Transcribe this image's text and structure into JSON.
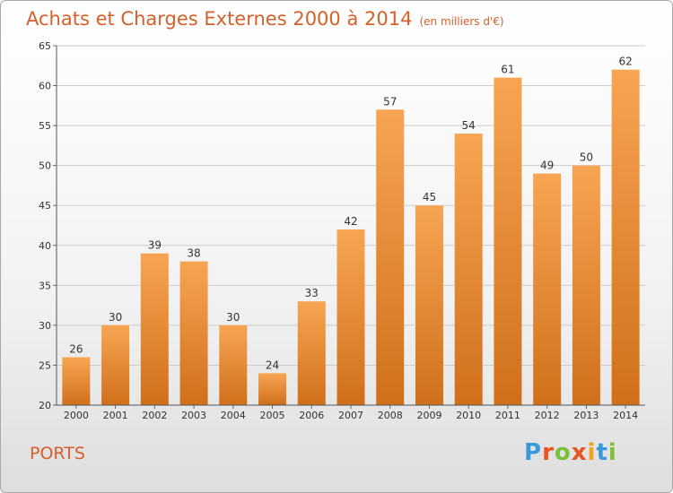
{
  "title": "Achats et Charges Externes 2000 à 2014",
  "unit": "(en milliers d'€)",
  "town": "PORTS",
  "logo": {
    "letters": [
      "P",
      "r",
      "o",
      "x",
      "i",
      "t",
      "i"
    ],
    "colors": [
      "#3a9ad9",
      "#e8531f",
      "#7cbf3a",
      "#e8531f",
      "#f2a31b",
      "#3a9ad9",
      "#7cbf3a"
    ]
  },
  "colors": {
    "bar_top": "#f7a553",
    "bar_bottom": "#d06f1a",
    "title": "#d6602a",
    "grid": "#cccccc"
  },
  "chart_data": {
    "type": "bar",
    "categories": [
      "2000",
      "2001",
      "2002",
      "2003",
      "2004",
      "2005",
      "2006",
      "2007",
      "2008",
      "2009",
      "2010",
      "2011",
      "2012",
      "2013",
      "2014"
    ],
    "values": [
      26,
      30,
      39,
      38,
      30,
      24,
      33,
      42,
      57,
      45,
      54,
      61,
      49,
      50,
      62
    ],
    "ylim": [
      20,
      65
    ],
    "yticks": [
      20,
      25,
      30,
      35,
      40,
      45,
      50,
      55,
      60,
      65
    ],
    "grid": true,
    "legend": "none",
    "data_labels": true
  }
}
